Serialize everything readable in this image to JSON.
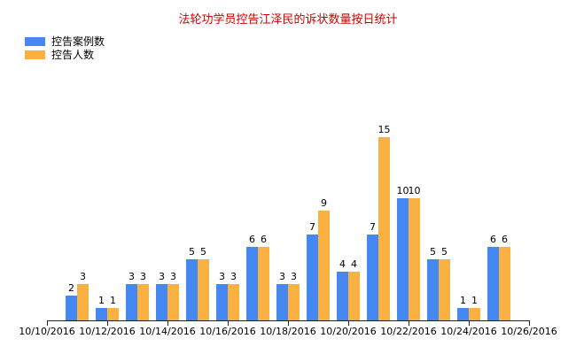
{
  "title": "法轮功学员控告江泽民的诉状数量按日统计",
  "colors": {
    "title": "#cc0000",
    "cases_series": "#4688f2",
    "people_series": "#fbb042",
    "axis": "#222222",
    "label_text": "#000000",
    "background": "#ffffff"
  },
  "legend": {
    "items": [
      {
        "label": "控告案例数",
        "color": "#4688f2"
      },
      {
        "label": "控告人数",
        "color": "#fbb042"
      }
    ]
  },
  "chart_data": {
    "type": "bar",
    "title": "法轮功学员控告江泽民的诉状数量按日统计",
    "xlabel": "",
    "ylabel": "",
    "categories": [
      "10/11/2016",
      "10/12/2016",
      "10/13/2016",
      "10/14/2016",
      "10/15/2016",
      "10/16/2016",
      "10/17/2016",
      "10/18/2016",
      "10/19/2016",
      "10/20/2016",
      "10/21/2016",
      "10/22/2016",
      "10/23/2016",
      "10/24/2016",
      "10/25/2016"
    ],
    "series": [
      {
        "name": "控告案例数",
        "color": "#4688f2",
        "values": [
          2,
          1,
          3,
          3,
          5,
          3,
          6,
          3,
          7,
          4,
          7,
          10,
          5,
          1,
          6
        ]
      },
      {
        "name": "控告人数",
        "color": "#fbb042",
        "values": [
          3,
          1,
          3,
          3,
          5,
          3,
          6,
          3,
          9,
          4,
          15,
          10,
          5,
          1,
          6
        ]
      }
    ],
    "x_tick_labels": [
      "10/10/2016",
      "10/12/2016",
      "10/14/2016",
      "10/16/2016",
      "10/18/2016",
      "10/20/2016",
      "10/22/2016",
      "10/24/2016",
      "10/26/2016"
    ],
    "ylim": [
      0,
      15
    ],
    "grid": false,
    "y_axis_visible": false,
    "data_labels": true,
    "legend_position": "top-left"
  }
}
